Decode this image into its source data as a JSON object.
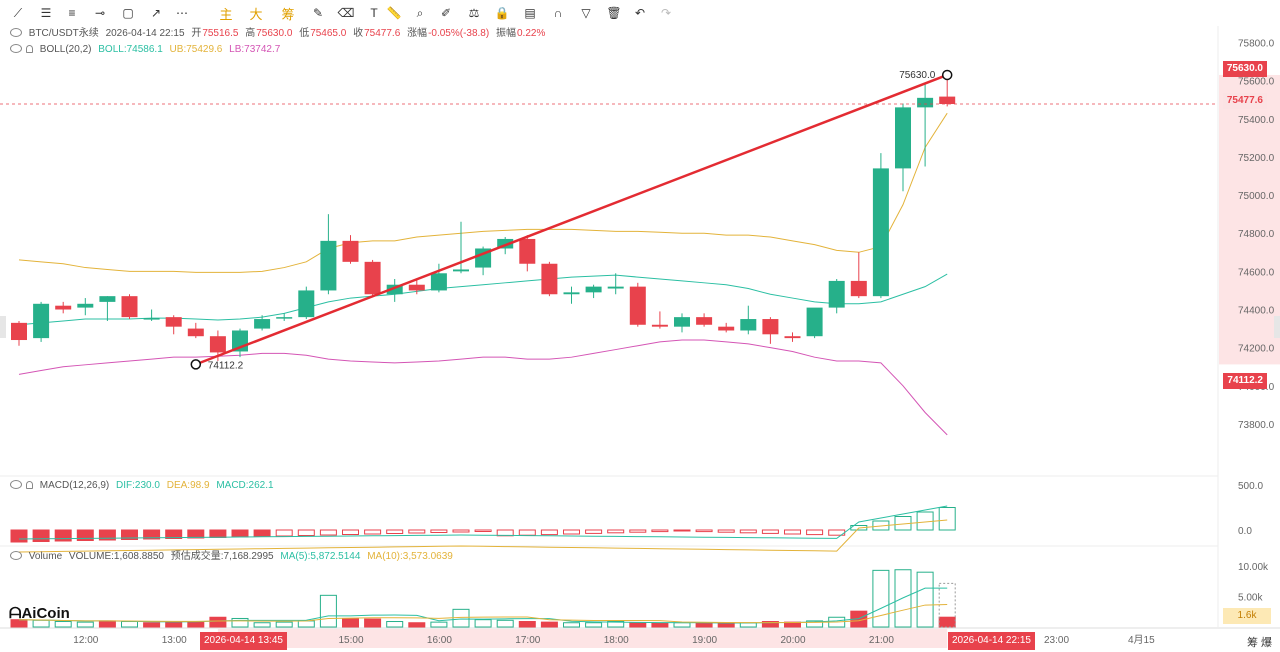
{
  "toolbar": {
    "items": [
      {
        "name": "line-tool-icon",
        "glyph": "⟋"
      },
      {
        "name": "horizontal-lines-icon",
        "glyph": "☰"
      },
      {
        "name": "parallel-lines-icon",
        "glyph": "≡"
      },
      {
        "name": "ray-line-icon",
        "glyph": "⊸"
      },
      {
        "name": "rectangle-icon",
        "glyph": "▢"
      },
      {
        "name": "arrow-line-icon",
        "glyph": "↗"
      },
      {
        "name": "more-dots-icon",
        "glyph": "⋯"
      },
      {
        "name": "indicator-zhu",
        "glyph": "主",
        "cn": true
      },
      {
        "name": "indicator-da",
        "glyph": "大",
        "cn": true
      },
      {
        "name": "indicator-chou",
        "glyph": "筹",
        "cn": true
      },
      {
        "name": "edit-icon",
        "glyph": "✎"
      },
      {
        "name": "eraser-icon",
        "glyph": "⌫"
      },
      {
        "name": "text-icon",
        "glyph": "T"
      },
      {
        "name": "ruler-icon",
        "glyph": "📏"
      },
      {
        "name": "zoom-icon",
        "glyph": "⌕"
      },
      {
        "name": "pen-icon",
        "glyph": "✐"
      },
      {
        "name": "indicator-icon",
        "glyph": "⚖"
      },
      {
        "name": "lock-icon",
        "glyph": "🔒"
      },
      {
        "name": "picture-icon",
        "glyph": "▤"
      },
      {
        "name": "magnet-icon",
        "glyph": "∩"
      },
      {
        "name": "filter-icon",
        "glyph": "▽"
      },
      {
        "name": "trash-icon",
        "glyph": "🗑"
      },
      {
        "name": "undo-icon",
        "glyph": "↶"
      },
      {
        "name": "redo-icon",
        "glyph": "↷",
        "disabled": true
      }
    ]
  },
  "ohlc_info": {
    "symbol": "BTC/USDT永续",
    "datetime": "2026-04-14 22:15",
    "open_label": "开",
    "open": "75516.5",
    "high_label": "高",
    "high": "75630.0",
    "low_label": "低",
    "low": "75465.0",
    "close_label": "收",
    "close": "75477.6",
    "change_label": "涨幅",
    "change": "-0.05%(-38.8)",
    "amplitude_label": "振幅",
    "amplitude": "0.22%"
  },
  "boll_info": {
    "name": "BOLL(20,2)",
    "boll": "BOLL:74586.1",
    "ub": "UB:75429.6",
    "lb": "LB:73742.7"
  },
  "macd_info": {
    "name": "MACD(12,26,9)",
    "dif": "DIF:230.0",
    "dea": "DEA:98.9",
    "macd": "MACD:262.1"
  },
  "volume_info": {
    "name": "Volume",
    "volume": "VOLUME:1,608.8850",
    "est": "预估成交量:7,168.2995",
    "ma5": "MA(5):5,872.5144",
    "ma10": "MA(10):3,573.0639"
  },
  "price_axis": {
    "ticks": [
      "75800.0",
      "75600.0",
      "75400.0",
      "75200.0",
      "75000.0",
      "74800.0",
      "74600.0",
      "74400.0",
      "74200.0",
      "74000.0",
      "73800.0"
    ]
  },
  "macd_axis": {
    "ticks": [
      "500.0",
      "0.0"
    ]
  },
  "volume_axis": {
    "ticks": [
      "10.00k",
      "5.00k"
    ],
    "current": "1.6k"
  },
  "price_tags": {
    "high": "75630.0",
    "current": "75477.6",
    "low": "74112.2"
  },
  "annotations": {
    "high_label": "75630.0",
    "low_label": "74112.2"
  },
  "time_axis": {
    "labels": [
      "12:00",
      "13:00",
      "15:00",
      "16:00",
      "17:00",
      "18:00",
      "19:00",
      "20:00",
      "21:00",
      "23:00",
      "4月15"
    ],
    "start_tag": "2026-04-14 13:45",
    "end_tag": "2026-04-14 22:15"
  },
  "logo_text": "AiCoin",
  "bottom_right": "筹 爆",
  "colors": {
    "up": "#26b08a",
    "down": "#e8424c",
    "mid": "#2bbfa3",
    "upper": "#e3b33a",
    "lower": "#d455b5",
    "trend": "#e32b32"
  },
  "chart_data": {
    "type": "candlestick",
    "interval_minutes": 15,
    "x_labels": [
      "12:00",
      "13:00",
      "15:00",
      "16:00",
      "17:00",
      "18:00",
      "19:00",
      "20:00",
      "21:00",
      "23:00",
      "4月15"
    ],
    "candles": [
      {
        "t": "11:45",
        "o": 74330,
        "h": 74340,
        "l": 74210,
        "c": 74240
      },
      {
        "t": "12:00",
        "o": 74250,
        "h": 74440,
        "l": 74230,
        "c": 74430
      },
      {
        "t": "12:15",
        "o": 74420,
        "h": 74440,
        "l": 74380,
        "c": 74400
      },
      {
        "t": "12:30",
        "o": 74410,
        "h": 74460,
        "l": 74370,
        "c": 74430
      },
      {
        "t": "12:45",
        "o": 74440,
        "h": 74470,
        "l": 74340,
        "c": 74470
      },
      {
        "t": "13:00",
        "o": 74470,
        "h": 74480,
        "l": 74350,
        "c": 74360
      },
      {
        "t": "13:15",
        "o": 74350,
        "h": 74400,
        "l": 74340,
        "c": 74355
      },
      {
        "t": "13:30",
        "o": 74360,
        "h": 74370,
        "l": 74270,
        "c": 74310
      },
      {
        "t": "13:45",
        "o": 74300,
        "h": 74330,
        "l": 74250,
        "c": 74260
      },
      {
        "t": "14:00",
        "o": 74260,
        "h": 74290,
        "l": 74130,
        "c": 74175
      },
      {
        "t": "14:15",
        "o": 74180,
        "h": 74300,
        "l": 74150,
        "c": 74290
      },
      {
        "t": "14:30",
        "o": 74300,
        "h": 74370,
        "l": 74290,
        "c": 74350
      },
      {
        "t": "14:45",
        "o": 74355,
        "h": 74380,
        "l": 74340,
        "c": 74360
      },
      {
        "t": "15:00",
        "o": 74360,
        "h": 74520,
        "l": 74350,
        "c": 74500
      },
      {
        "t": "15:15",
        "o": 74500,
        "h": 74900,
        "l": 74480,
        "c": 74760
      },
      {
        "t": "15:30",
        "o": 74760,
        "h": 74790,
        "l": 74640,
        "c": 74650
      },
      {
        "t": "15:45",
        "o": 74650,
        "h": 74660,
        "l": 74470,
        "c": 74480
      },
      {
        "t": "16:00",
        "o": 74480,
        "h": 74560,
        "l": 74440,
        "c": 74530
      },
      {
        "t": "16:15",
        "o": 74530,
        "h": 74560,
        "l": 74480,
        "c": 74500
      },
      {
        "t": "16:30",
        "o": 74500,
        "h": 74640,
        "l": 74490,
        "c": 74590
      },
      {
        "t": "16:45",
        "o": 74600,
        "h": 74860,
        "l": 74590,
        "c": 74610
      },
      {
        "t": "17:00",
        "o": 74620,
        "h": 74730,
        "l": 74580,
        "c": 74720
      },
      {
        "t": "17:15",
        "o": 74720,
        "h": 74780,
        "l": 74690,
        "c": 74770
      },
      {
        "t": "17:30",
        "o": 74770,
        "h": 74790,
        "l": 74600,
        "c": 74640
      },
      {
        "t": "17:45",
        "o": 74640,
        "h": 74650,
        "l": 74470,
        "c": 74480
      },
      {
        "t": "18:00",
        "o": 74480,
        "h": 74520,
        "l": 74430,
        "c": 74490
      },
      {
        "t": "18:15",
        "o": 74490,
        "h": 74530,
        "l": 74460,
        "c": 74520
      },
      {
        "t": "18:30",
        "o": 74510,
        "h": 74590,
        "l": 74480,
        "c": 74520
      },
      {
        "t": "18:45",
        "o": 74520,
        "h": 74540,
        "l": 74310,
        "c": 74320
      },
      {
        "t": "19:00",
        "o": 74320,
        "h": 74390,
        "l": 74300,
        "c": 74310
      },
      {
        "t": "19:15",
        "o": 74310,
        "h": 74380,
        "l": 74280,
        "c": 74360
      },
      {
        "t": "19:30",
        "o": 74360,
        "h": 74380,
        "l": 74310,
        "c": 74320
      },
      {
        "t": "19:45",
        "o": 74310,
        "h": 74330,
        "l": 74280,
        "c": 74290
      },
      {
        "t": "20:00",
        "o": 74290,
        "h": 74420,
        "l": 74270,
        "c": 74350
      },
      {
        "t": "20:15",
        "o": 74350,
        "h": 74360,
        "l": 74220,
        "c": 74270
      },
      {
        "t": "20:30",
        "o": 74260,
        "h": 74280,
        "l": 74230,
        "c": 74250
      },
      {
        "t": "20:45",
        "o": 74260,
        "h": 74400,
        "l": 74250,
        "c": 74410
      },
      {
        "t": "21:00",
        "o": 74410,
        "h": 74560,
        "l": 74380,
        "c": 74550
      },
      {
        "t": "21:15",
        "o": 74550,
        "h": 74700,
        "l": 74460,
        "c": 74470
      },
      {
        "t": "21:30",
        "o": 74470,
        "h": 75220,
        "l": 74460,
        "c": 75140
      },
      {
        "t": "21:45",
        "o": 75140,
        "h": 75480,
        "l": 75020,
        "c": 75460
      },
      {
        "t": "22:00",
        "o": 75460,
        "h": 75580,
        "l": 75150,
        "c": 75510
      },
      {
        "t": "22:15",
        "o": 75516.5,
        "h": 75630,
        "l": 75465,
        "c": 75477.6
      }
    ],
    "boll_mid": [
      74320,
      74330,
      74340,
      74350,
      74350,
      74350,
      74355,
      74355,
      74350,
      74345,
      74350,
      74360,
      74380,
      74410,
      74440,
      74460,
      74470,
      74480,
      74495,
      74510,
      74520,
      74530,
      74540,
      74550,
      74560,
      74570,
      74575,
      74580,
      74570,
      74560,
      74550,
      74540,
      74530,
      74510,
      74480,
      74460,
      74440,
      74430,
      74430,
      74440,
      74480,
      74520,
      74586.1
    ],
    "boll_upper": [
      74660,
      74650,
      74640,
      74620,
      74610,
      74600,
      74600,
      74600,
      74595,
      74595,
      74595,
      74600,
      74620,
      74650,
      74720,
      74750,
      74760,
      74760,
      74780,
      74790,
      74800,
      74810,
      74815,
      74820,
      74820,
      74820,
      74815,
      74810,
      74810,
      74805,
      74800,
      74800,
      74790,
      74790,
      74780,
      74760,
      74740,
      74710,
      74700,
      74730,
      74950,
      75250,
      75429.6
    ],
    "boll_lower": [
      74060,
      74080,
      74100,
      74110,
      74120,
      74130,
      74140,
      74150,
      74150,
      74155,
      74160,
      74170,
      74170,
      74160,
      74140,
      74130,
      74125,
      74120,
      74125,
      74130,
      74140,
      74150,
      74150,
      74140,
      74140,
      74150,
      74170,
      74190,
      74210,
      74230,
      74240,
      74240,
      74230,
      74220,
      74200,
      74180,
      74150,
      74130,
      74130,
      74120,
      74000,
      73860,
      73742.7
    ],
    "trend_line": {
      "from": {
        "t": "13:45",
        "price": 74112.2
      },
      "to": {
        "t": "22:15",
        "price": 75630.0
      }
    },
    "macd": {
      "dif": 230.0,
      "dea": 98.9,
      "hist": 262.1
    },
    "volume": [
      1200,
      1100,
      900,
      800,
      1000,
      900,
      700,
      800,
      900,
      1600,
      1400,
      700,
      800,
      1000,
      5200,
      1400,
      1300,
      900,
      700,
      800,
      2900,
      1200,
      1100,
      900,
      800,
      700,
      700,
      900,
      700,
      600,
      700,
      600,
      700,
      700,
      900,
      800,
      1000,
      1600,
      2600,
      9300,
      9400,
      9000,
      1608.885
    ],
    "volume_up_flags": [
      0,
      1,
      1,
      1,
      0,
      1,
      0,
      0,
      0,
      0,
      1,
      1,
      1,
      1,
      1,
      0,
      0,
      1,
      0,
      1,
      1,
      1,
      1,
      0,
      0,
      1,
      1,
      1,
      0,
      0,
      1,
      0,
      0,
      1,
      0,
      0,
      1,
      1,
      0,
      1,
      1,
      1,
      0
    ],
    "y_range": [
      73700,
      75850
    ],
    "volume_range": [
      0,
      11000
    ]
  }
}
